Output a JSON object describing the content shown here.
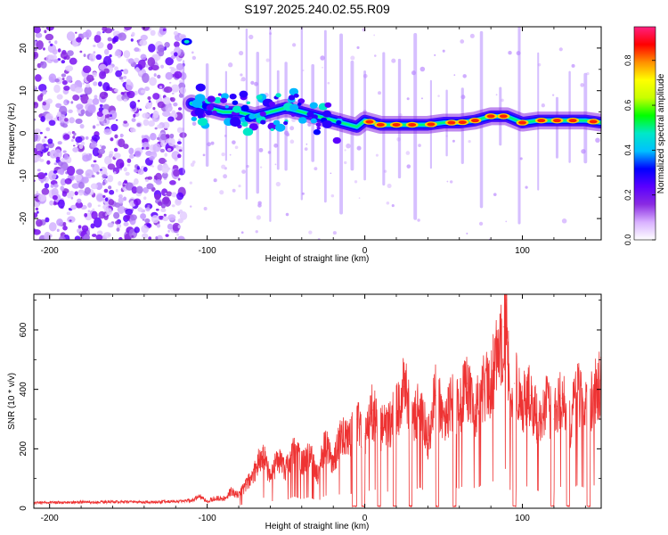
{
  "figure": {
    "title": "S197.2025.240.02.55.R09"
  },
  "chart_data": [
    {
      "type": "heatmap",
      "title": "S197.2025.240.02.55.R09",
      "xlabel": "Height of straight line (km)",
      "ylabel": "Frequency (Hz)",
      "xlim": [
        -210,
        150
      ],
      "ylim": [
        -25,
        25
      ],
      "xticks": [
        -200,
        -100,
        0,
        100
      ],
      "yticks": [
        -20,
        -10,
        0,
        10,
        20
      ],
      "xtick_labels": [
        "-200",
        "-100",
        "0",
        "100"
      ],
      "ytick_labels": [
        "-20",
        "-10",
        "0",
        "10",
        "20"
      ],
      "colorbar": {
        "label": "Normalized spectral amplitude",
        "range": [
          0,
          0.95
        ],
        "ticks": [
          0.0,
          0.2,
          0.4,
          0.6,
          0.8
        ],
        "tick_labels": [
          "0.0",
          "0.2",
          "0.4",
          "0.6",
          "0.8"
        ],
        "colormap": [
          "#ffffff",
          "#d8b0ff",
          "#8a2be2",
          "#5a00ff",
          "#0000ff",
          "#00c0ff",
          "#00e8c8",
          "#00ff00",
          "#c8ff00",
          "#ffff00",
          "#ff9000",
          "#ff0000",
          "#ff2080"
        ]
      },
      "ridge": {
        "description_values": "peak frequency track (Hz) vs height (km)",
        "x": [
          -110,
          -100,
          -90,
          -80,
          -70,
          -60,
          -50,
          -40,
          -30,
          -20,
          -10,
          -5,
          0,
          10,
          20,
          30,
          40,
          50,
          60,
          70,
          80,
          90,
          100,
          110,
          120,
          130,
          140,
          150
        ],
        "y": [
          7,
          6,
          5,
          5,
          4,
          5,
          6,
          5,
          4,
          3,
          2,
          1.5,
          3,
          2,
          2,
          2,
          2,
          2.5,
          2.5,
          3,
          4,
          4,
          2.5,
          3,
          3,
          3,
          3,
          2.5
        ]
      }
    },
    {
      "type": "line",
      "xlabel": "Height of straight line (km)",
      "ylabel": "SNR (10 * v/v)",
      "xlim": [
        -210,
        150
      ],
      "ylim": [
        0,
        720
      ],
      "xticks": [
        -200,
        -100,
        0,
        100
      ],
      "yticks": [
        0,
        200,
        400,
        600
      ],
      "xtick_labels": [
        "-200",
        "-100",
        "0",
        "100"
      ],
      "ytick_labels": [
        "0",
        "200",
        "400",
        "600"
      ],
      "series": [
        {
          "name": "SNR",
          "color": "#ee3333",
          "x": [
            -210,
            -200,
            -190,
            -180,
            -170,
            -160,
            -150,
            -140,
            -130,
            -120,
            -110,
            -105,
            -100,
            -95,
            -90,
            -85,
            -80,
            -75,
            -70,
            -65,
            -60,
            -55,
            -50,
            -45,
            -40,
            -35,
            -30,
            -25,
            -20,
            -15,
            -10,
            -5,
            0,
            5,
            10,
            15,
            20,
            25,
            30,
            35,
            40,
            45,
            50,
            55,
            60,
            65,
            70,
            75,
            80,
            85,
            88,
            90,
            92,
            95,
            100,
            105,
            110,
            115,
            120,
            125,
            130,
            135,
            140,
            145,
            150
          ],
          "y": [
            18,
            20,
            19,
            21,
            20,
            22,
            21,
            20,
            22,
            24,
            26,
            40,
            25,
            35,
            30,
            55,
            45,
            80,
            120,
            190,
            100,
            170,
            130,
            200,
            150,
            190,
            110,
            220,
            140,
            260,
            230,
            300,
            250,
            330,
            270,
            280,
            320,
            410,
            290,
            350,
            230,
            380,
            300,
            360,
            330,
            420,
            330,
            400,
            430,
            520,
            610,
            700,
            300,
            420,
            350,
            380,
            290,
            350,
            300,
            370,
            280,
            390,
            340,
            380,
            420
          ]
        }
      ]
    }
  ]
}
